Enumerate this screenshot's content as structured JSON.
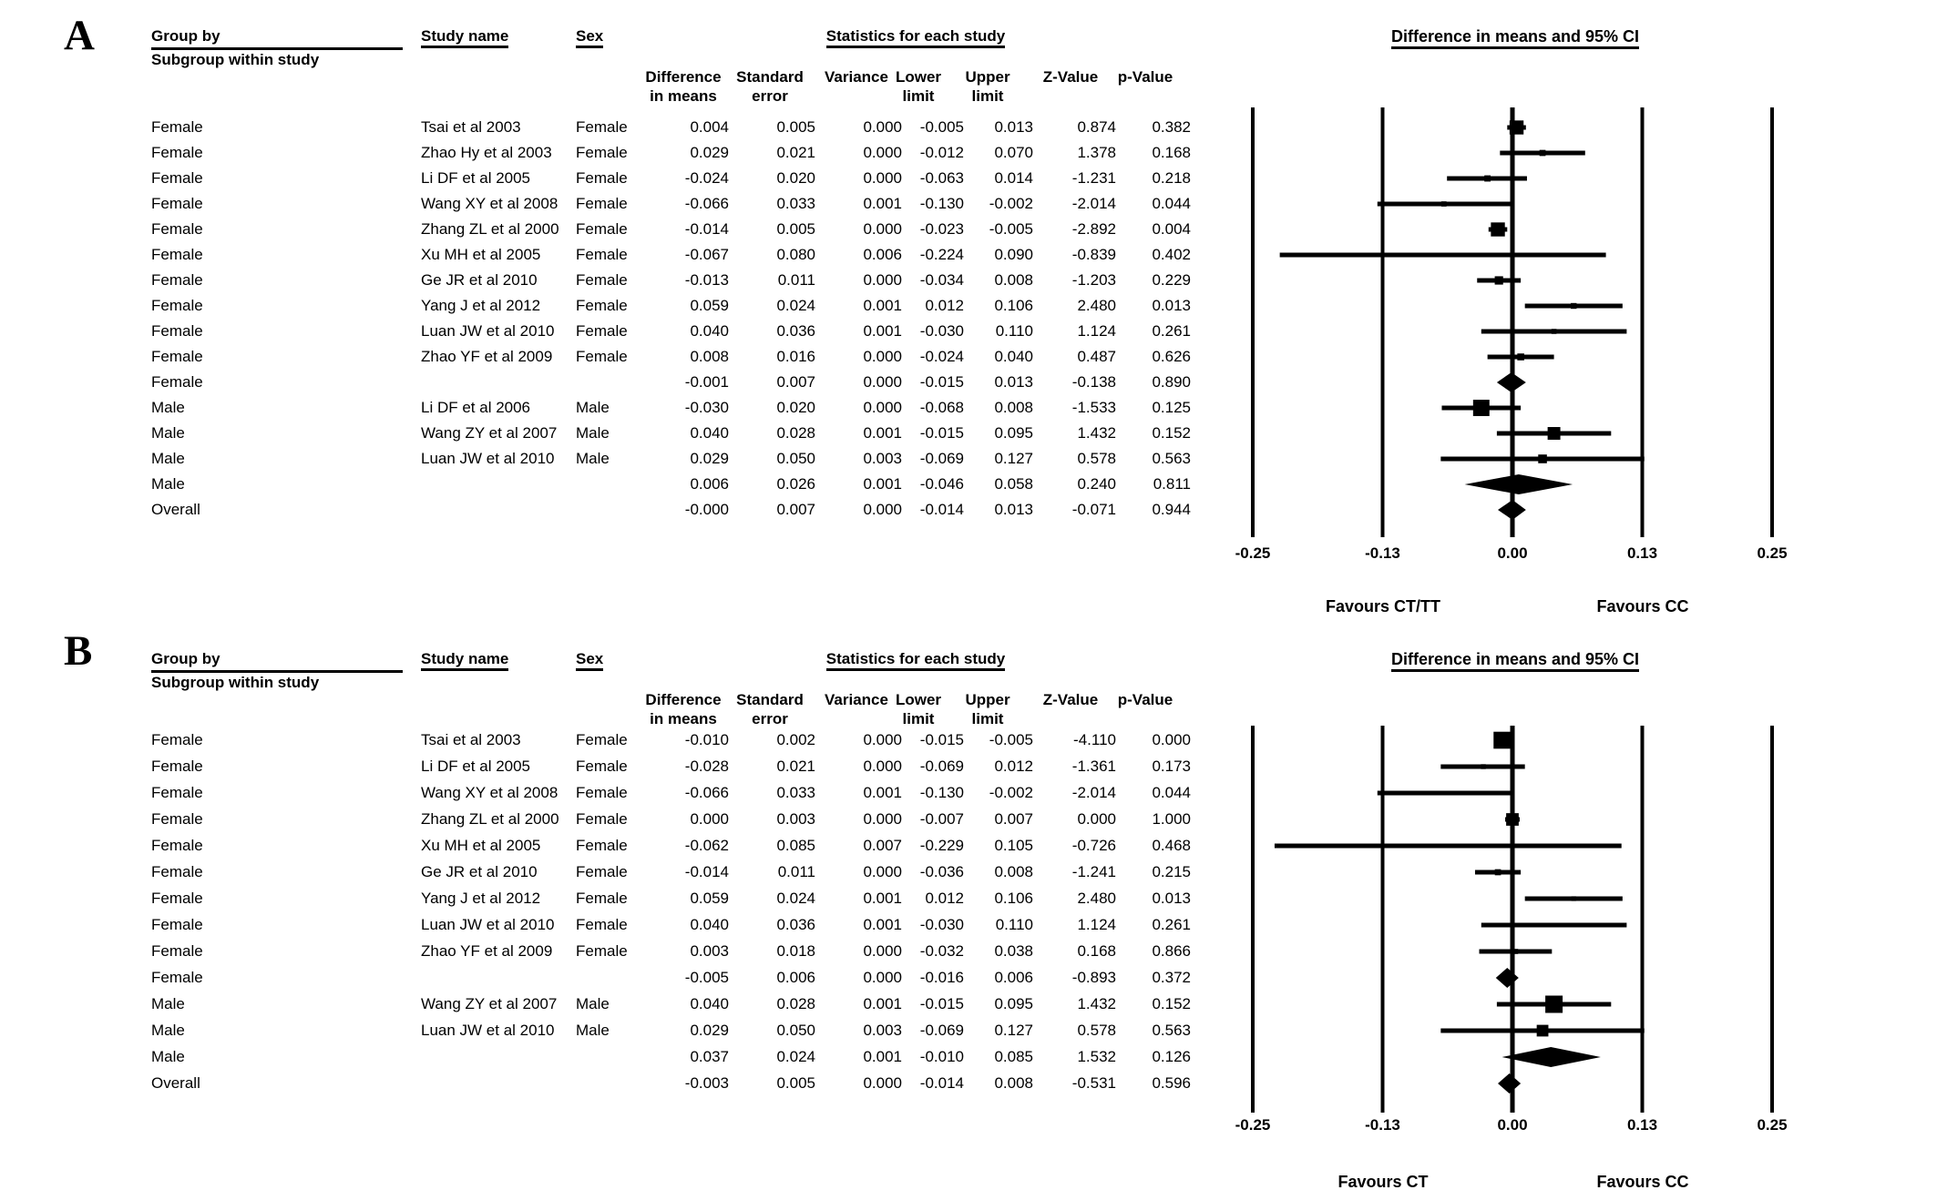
{
  "chart_data": [
    {
      "type": "forest",
      "panel_label": "A",
      "plot_title": "Difference in means and 95% CI",
      "header": {
        "group_by": "Group by",
        "subgroup": "Subgroup within study",
        "study_name": "Study name",
        "sex": "Sex",
        "stats_title": "Statistics for each study",
        "stat_cols": [
          [
            "Difference",
            "in means"
          ],
          [
            "Standard",
            "error"
          ],
          [
            "",
            "Variance"
          ],
          [
            "Lower",
            "limit"
          ],
          [
            "Upper",
            "limit"
          ],
          [
            "",
            "Z-Value"
          ],
          [
            "",
            "p-Value"
          ]
        ]
      },
      "axis": {
        "xlim": [
          -0.25,
          0.25
        ],
        "tick_labels": [
          "-0.25",
          "-0.13",
          "0.00",
          "0.13",
          "0.25"
        ],
        "tick_values": [
          -0.25,
          -0.125,
          0,
          0.125,
          0.25
        ],
        "favours_left": "Favours CT/TT",
        "favours_right": "Favours CC"
      },
      "rows": [
        {
          "group": "Female",
          "study": "Tsai et al 2003",
          "sex": "Female",
          "summary": false,
          "stats": [
            "0.004",
            "0.005",
            "0.000",
            "-0.005",
            "0.013",
            "0.874",
            "0.382"
          ]
        },
        {
          "group": "Female",
          "study": "Zhao Hy et al 2003",
          "sex": "Female",
          "summary": false,
          "stats": [
            "0.029",
            "0.021",
            "0.000",
            "-0.012",
            "0.070",
            "1.378",
            "0.168"
          ]
        },
        {
          "group": "Female",
          "study": "Li DF et al 2005",
          "sex": "Female",
          "summary": false,
          "stats": [
            "-0.024",
            "0.020",
            "0.000",
            "-0.063",
            "0.014",
            "-1.231",
            "0.218"
          ]
        },
        {
          "group": "Female",
          "study": "Wang XY et al 2008",
          "sex": "Female",
          "summary": false,
          "stats": [
            "-0.066",
            "0.033",
            "0.001",
            "-0.130",
            "-0.002",
            "-2.014",
            "0.044"
          ]
        },
        {
          "group": "Female",
          "study": "Zhang ZL et al 2000",
          "sex": "Female",
          "summary": false,
          "stats": [
            "-0.014",
            "0.005",
            "0.000",
            "-0.023",
            "-0.005",
            "-2.892",
            "0.004"
          ]
        },
        {
          "group": "Female",
          "study": "Xu MH et al 2005",
          "sex": "Female",
          "summary": false,
          "stats": [
            "-0.067",
            "0.080",
            "0.006",
            "-0.224",
            "0.090",
            "-0.839",
            "0.402"
          ]
        },
        {
          "group": "Female",
          "study": "Ge JR et al 2010",
          "sex": "Female",
          "summary": false,
          "stats": [
            "-0.013",
            "0.011",
            "0.000",
            "-0.034",
            "0.008",
            "-1.203",
            "0.229"
          ]
        },
        {
          "group": "Female",
          "study": "Yang J et al 2012",
          "sex": "Female",
          "summary": false,
          "stats": [
            "0.059",
            "0.024",
            "0.001",
            "0.012",
            "0.106",
            "2.480",
            "0.013"
          ]
        },
        {
          "group": "Female",
          "study": "Luan JW et al 2010",
          "sex": "Female",
          "summary": false,
          "stats": [
            "0.040",
            "0.036",
            "0.001",
            "-0.030",
            "0.110",
            "1.124",
            "0.261"
          ]
        },
        {
          "group": "Female",
          "study": "Zhao YF et al 2009",
          "sex": "Female",
          "summary": false,
          "stats": [
            "0.008",
            "0.016",
            "0.000",
            "-0.024",
            "0.040",
            "0.487",
            "0.626"
          ]
        },
        {
          "group": "Female",
          "study": "",
          "sex": "",
          "summary": true,
          "stats": [
            "-0.001",
            "0.007",
            "0.000",
            "-0.015",
            "0.013",
            "-0.138",
            "0.890"
          ]
        },
        {
          "group": "Male",
          "study": "Li DF et al 2006",
          "sex": "Male",
          "summary": false,
          "stats": [
            "-0.030",
            "0.020",
            "0.000",
            "-0.068",
            "0.008",
            "-1.533",
            "0.125"
          ]
        },
        {
          "group": "Male",
          "study": "Wang ZY et al 2007",
          "sex": "Male",
          "summary": false,
          "stats": [
            "0.040",
            "0.028",
            "0.001",
            "-0.015",
            "0.095",
            "1.432",
            "0.152"
          ]
        },
        {
          "group": "Male",
          "study": "Luan JW et al 2010",
          "sex": "Male",
          "summary": false,
          "stats": [
            "0.029",
            "0.050",
            "0.003",
            "-0.069",
            "0.127",
            "0.578",
            "0.563"
          ]
        },
        {
          "group": "Male",
          "study": "",
          "sex": "",
          "summary": true,
          "stats": [
            "0.006",
            "0.026",
            "0.001",
            "-0.046",
            "0.058",
            "0.240",
            "0.811"
          ]
        },
        {
          "group": "Overall",
          "study": "",
          "sex": "",
          "summary": true,
          "stats": [
            "-0.000",
            "0.007",
            "0.000",
            "-0.014",
            "0.013",
            "-0.071",
            "0.944"
          ]
        }
      ]
    },
    {
      "type": "forest",
      "panel_label": "B",
      "plot_title": "Difference in means and 95% CI",
      "header": {
        "group_by": "Group by",
        "subgroup": "Subgroup within study",
        "study_name": "Study name",
        "sex": "Sex",
        "stats_title": "Statistics for each study",
        "stat_cols": [
          [
            "Difference",
            "in means"
          ],
          [
            "Standard",
            "error"
          ],
          [
            "",
            "Variance"
          ],
          [
            "Lower",
            "limit"
          ],
          [
            "Upper",
            "limit"
          ],
          [
            "",
            "Z-Value"
          ],
          [
            "",
            "p-Value"
          ]
        ]
      },
      "axis": {
        "xlim": [
          -0.25,
          0.25
        ],
        "tick_labels": [
          "-0.25",
          "-0.13",
          "0.00",
          "0.13",
          "0.25"
        ],
        "tick_values": [
          -0.25,
          -0.125,
          0,
          0.125,
          0.25
        ],
        "favours_left": "Favours CT",
        "favours_right": "Favours CC"
      },
      "rows": [
        {
          "group": "Female",
          "study": "Tsai et al 2003",
          "sex": "Female",
          "summary": false,
          "stats": [
            "-0.010",
            "0.002",
            "0.000",
            "-0.015",
            "-0.005",
            "-4.110",
            "0.000"
          ]
        },
        {
          "group": "Female",
          "study": "Li DF et al 2005",
          "sex": "Female",
          "summary": false,
          "stats": [
            "-0.028",
            "0.021",
            "0.000",
            "-0.069",
            "0.012",
            "-1.361",
            "0.173"
          ]
        },
        {
          "group": "Female",
          "study": "Wang XY et al 2008",
          "sex": "Female",
          "summary": false,
          "stats": [
            "-0.066",
            "0.033",
            "0.001",
            "-0.130",
            "-0.002",
            "-2.014",
            "0.044"
          ]
        },
        {
          "group": "Female",
          "study": "Zhang ZL et al 2000",
          "sex": "Female",
          "summary": false,
          "stats": [
            "0.000",
            "0.003",
            "0.000",
            "-0.007",
            "0.007",
            "0.000",
            "1.000"
          ]
        },
        {
          "group": "Female",
          "study": "Xu MH et al 2005",
          "sex": "Female",
          "summary": false,
          "stats": [
            "-0.062",
            "0.085",
            "0.007",
            "-0.229",
            "0.105",
            "-0.726",
            "0.468"
          ]
        },
        {
          "group": "Female",
          "study": "Ge JR et al 2010",
          "sex": "Female",
          "summary": false,
          "stats": [
            "-0.014",
            "0.011",
            "0.000",
            "-0.036",
            "0.008",
            "-1.241",
            "0.215"
          ]
        },
        {
          "group": "Female",
          "study": "Yang J et al 2012",
          "sex": "Female",
          "summary": false,
          "stats": [
            "0.059",
            "0.024",
            "0.001",
            "0.012",
            "0.106",
            "2.480",
            "0.013"
          ]
        },
        {
          "group": "Female",
          "study": "Luan JW et al 2010",
          "sex": "Female",
          "summary": false,
          "stats": [
            "0.040",
            "0.036",
            "0.001",
            "-0.030",
            "0.110",
            "1.124",
            "0.261"
          ]
        },
        {
          "group": "Female",
          "study": "Zhao YF et al 2009",
          "sex": "Female",
          "summary": false,
          "stats": [
            "0.003",
            "0.018",
            "0.000",
            "-0.032",
            "0.038",
            "0.168",
            "0.866"
          ]
        },
        {
          "group": "Female",
          "study": "",
          "sex": "",
          "summary": true,
          "stats": [
            "-0.005",
            "0.006",
            "0.000",
            "-0.016",
            "0.006",
            "-0.893",
            "0.372"
          ]
        },
        {
          "group": "Male",
          "study": "Wang ZY et al 2007",
          "sex": "Male",
          "summary": false,
          "stats": [
            "0.040",
            "0.028",
            "0.001",
            "-0.015",
            "0.095",
            "1.432",
            "0.152"
          ]
        },
        {
          "group": "Male",
          "study": "Luan JW et al 2010",
          "sex": "Male",
          "summary": false,
          "stats": [
            "0.029",
            "0.050",
            "0.003",
            "-0.069",
            "0.127",
            "0.578",
            "0.563"
          ]
        },
        {
          "group": "Male",
          "study": "",
          "sex": "",
          "summary": true,
          "stats": [
            "0.037",
            "0.024",
            "0.001",
            "-0.010",
            "0.085",
            "1.532",
            "0.126"
          ]
        },
        {
          "group": "Overall",
          "study": "",
          "sex": "",
          "summary": true,
          "stats": [
            "-0.003",
            "0.005",
            "0.000",
            "-0.014",
            "0.008",
            "-0.531",
            "0.596"
          ]
        }
      ]
    }
  ]
}
